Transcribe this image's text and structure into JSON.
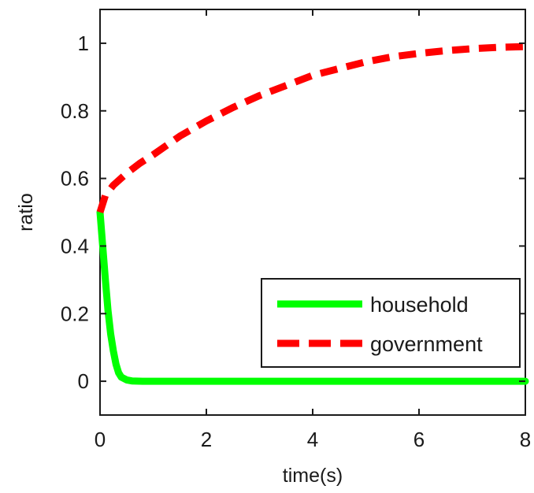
{
  "chart_data": {
    "type": "line",
    "xlabel": "time(s)",
    "ylabel": "ratio",
    "xlim": [
      0,
      8
    ],
    "ylim": [
      -0.1,
      1.1
    ],
    "x_ticks": [
      0,
      2,
      4,
      6,
      8
    ],
    "y_ticks": [
      0,
      0.2,
      0.4,
      0.6,
      0.8,
      1
    ],
    "x_tick_labels": [
      "0",
      "2",
      "4",
      "6",
      "8"
    ],
    "y_tick_labels": [
      "0",
      "0.2",
      "0.4",
      "0.6",
      "0.8",
      "1"
    ],
    "grid": false,
    "legend_position": "bottom-right",
    "series": [
      {
        "name": "household",
        "color": "#00ff00",
        "style": "solid",
        "x": [
          0,
          0.05,
          0.1,
          0.15,
          0.2,
          0.25,
          0.3,
          0.35,
          0.4,
          0.5,
          0.6,
          0.8,
          1,
          2,
          3,
          4,
          5,
          6,
          7,
          8
        ],
        "y": [
          0.5,
          0.4,
          0.3,
          0.21,
          0.14,
          0.09,
          0.05,
          0.025,
          0.012,
          0.004,
          0.001,
          0,
          0,
          0,
          0,
          0,
          0,
          0,
          0,
          0
        ]
      },
      {
        "name": "government",
        "color": "#ff0000",
        "style": "dashed",
        "x": [
          0,
          0.1,
          0.25,
          0.5,
          0.75,
          1,
          1.5,
          2,
          2.5,
          3,
          3.5,
          4,
          4.5,
          5,
          5.5,
          6,
          6.5,
          7,
          7.5,
          8
        ],
        "y": [
          0.5,
          0.55,
          0.58,
          0.615,
          0.645,
          0.67,
          0.725,
          0.77,
          0.81,
          0.845,
          0.875,
          0.905,
          0.925,
          0.945,
          0.96,
          0.97,
          0.978,
          0.984,
          0.988,
          0.99
        ]
      }
    ]
  }
}
